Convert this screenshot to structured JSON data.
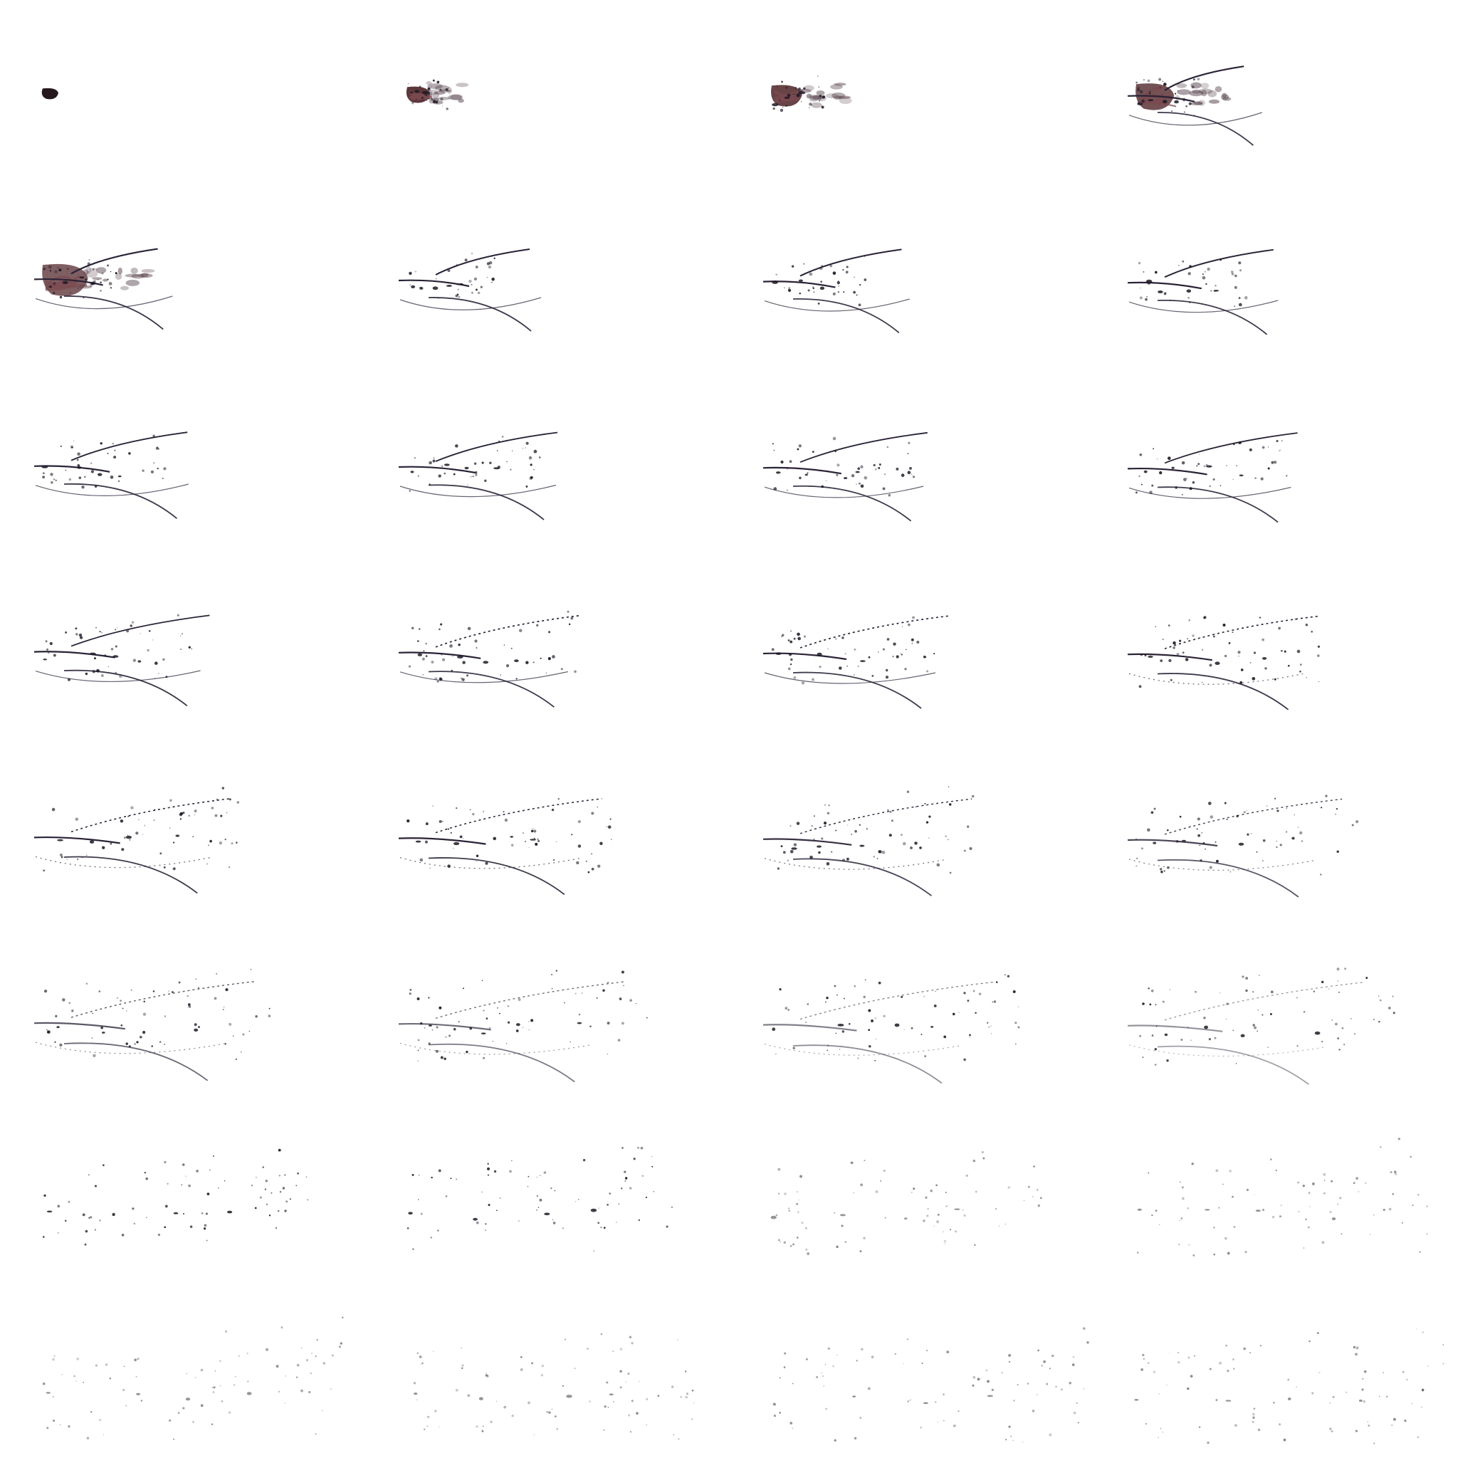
{
  "sheet": {
    "description_kind": "sprite-sheet",
    "columns": 4,
    "rows": 8,
    "background": "#ffffff",
    "ink_colors": {
      "wine": "#4a1e22",
      "wine_light": "#7a4a50",
      "dark_ink": "#2a2236",
      "dot_ink": "#1e1a26"
    },
    "frames": [
      {
        "index": 1,
        "stage": 0.0
      },
      {
        "index": 2,
        "stage": 0.04
      },
      {
        "index": 3,
        "stage": 0.08
      },
      {
        "index": 4,
        "stage": 0.12
      },
      {
        "index": 5,
        "stage": 0.16
      },
      {
        "index": 6,
        "stage": 0.2
      },
      {
        "index": 7,
        "stage": 0.24
      },
      {
        "index": 8,
        "stage": 0.28
      },
      {
        "index": 9,
        "stage": 0.32
      },
      {
        "index": 10,
        "stage": 0.35
      },
      {
        "index": 11,
        "stage": 0.38
      },
      {
        "index": 12,
        "stage": 0.41
      },
      {
        "index": 13,
        "stage": 0.44
      },
      {
        "index": 14,
        "stage": 0.47
      },
      {
        "index": 15,
        "stage": 0.5
      },
      {
        "index": 16,
        "stage": 0.53
      },
      {
        "index": 17,
        "stage": 0.56
      },
      {
        "index": 18,
        "stage": 0.59
      },
      {
        "index": 19,
        "stage": 0.62
      },
      {
        "index": 20,
        "stage": 0.65
      },
      {
        "index": 21,
        "stage": 0.68
      },
      {
        "index": 22,
        "stage": 0.71
      },
      {
        "index": 23,
        "stage": 0.74
      },
      {
        "index": 24,
        "stage": 0.77
      },
      {
        "index": 25,
        "stage": 0.8
      },
      {
        "index": 26,
        "stage": 0.83
      },
      {
        "index": 27,
        "stage": 0.86
      },
      {
        "index": 28,
        "stage": 0.89
      },
      {
        "index": 29,
        "stage": 0.92
      },
      {
        "index": 30,
        "stage": 0.95
      },
      {
        "index": 31,
        "stage": 0.97
      },
      {
        "index": 32,
        "stage": 1.0
      }
    ]
  }
}
